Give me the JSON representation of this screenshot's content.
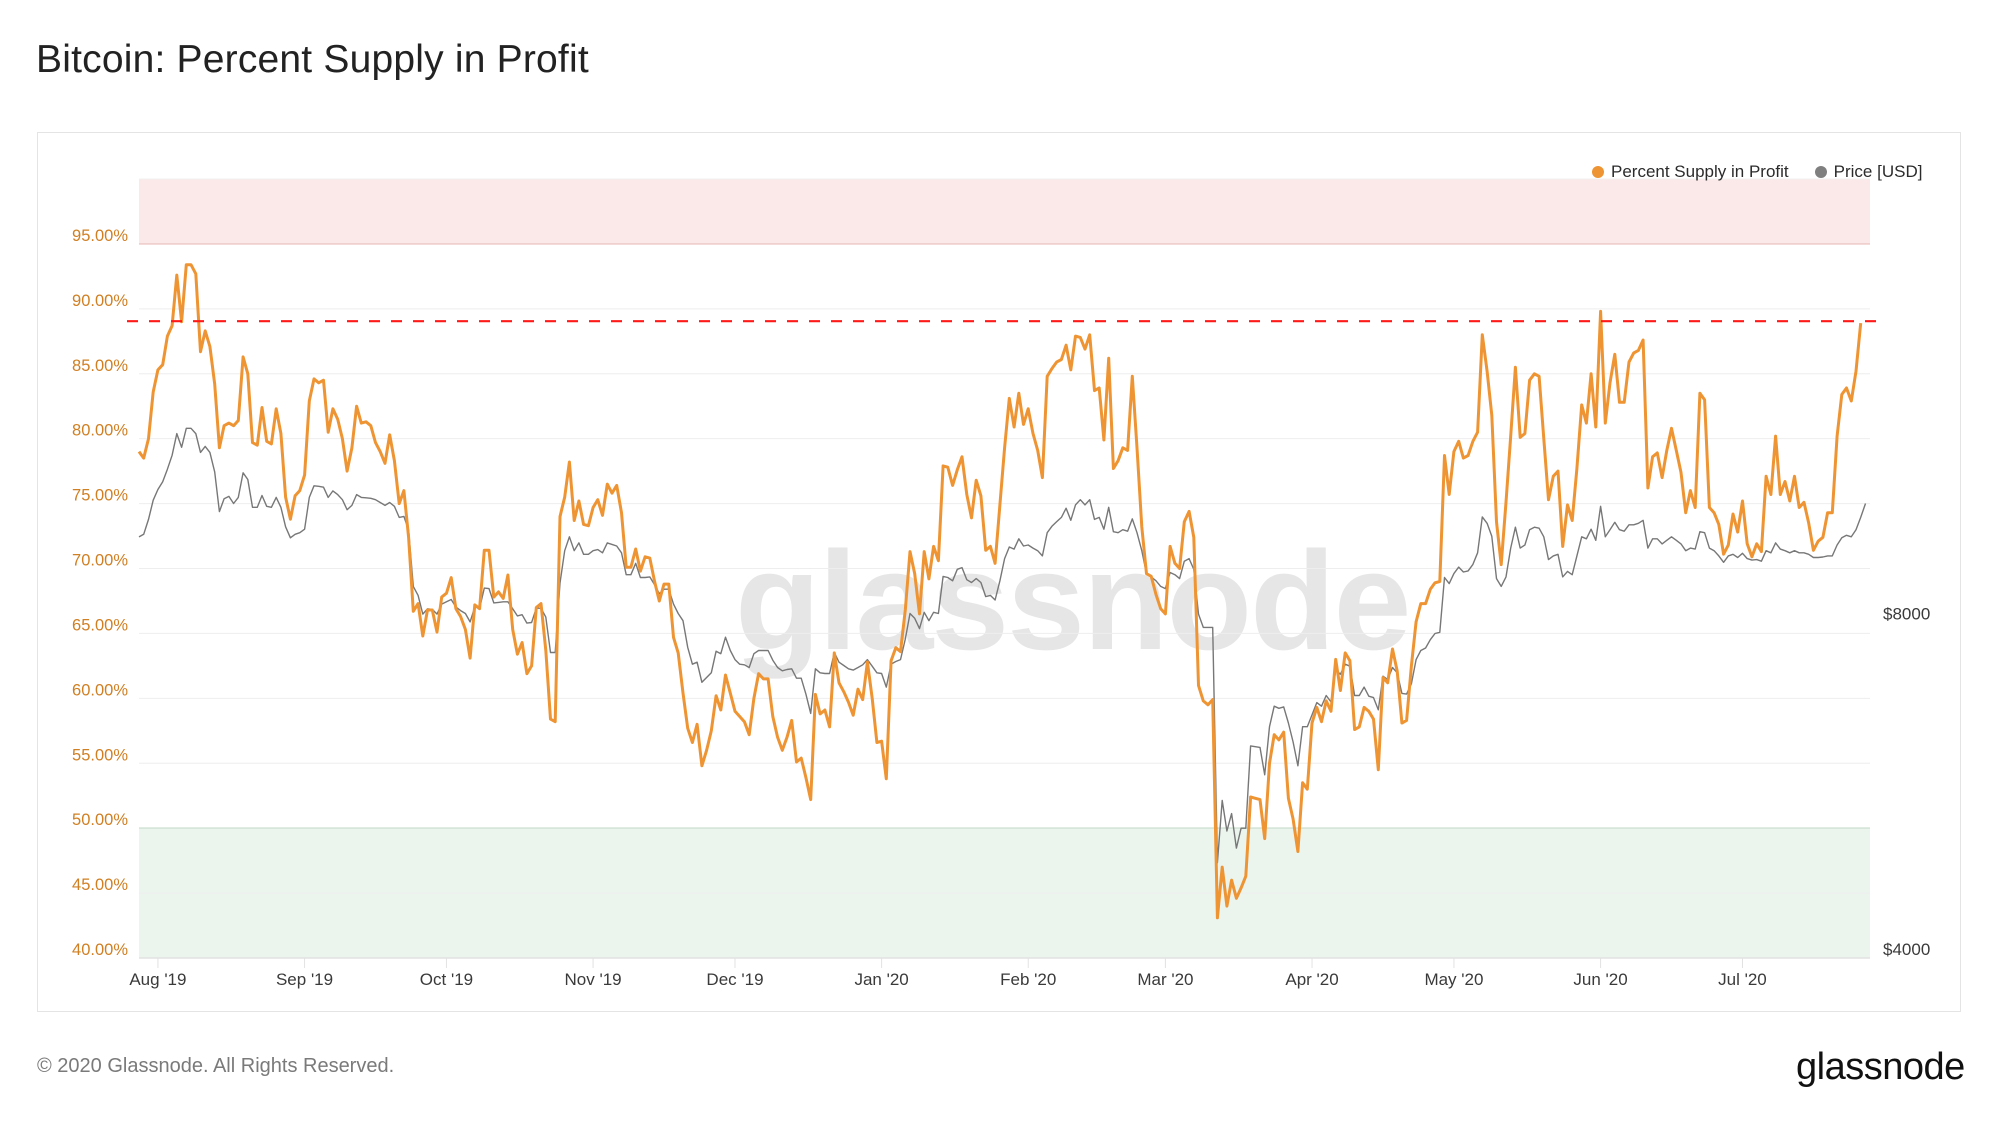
{
  "page": {
    "title": "Bitcoin: Percent Supply in Profit",
    "footer": "© 2020 Glassnode. All Rights Reserved.",
    "logo": "glassnode",
    "watermark": "glassnode"
  },
  "chart_data": {
    "type": "line",
    "title": "Bitcoin: Percent Supply in Profit",
    "x_start_date": "2019-07-28",
    "x_interval": "1 day",
    "x_ticks": [
      {
        "label": "Aug '19",
        "day": 4
      },
      {
        "label": "Sep '19",
        "day": 35
      },
      {
        "label": "Oct '19",
        "day": 65
      },
      {
        "label": "Nov '19",
        "day": 96
      },
      {
        "label": "Dec '19",
        "day": 126
      },
      {
        "label": "Jan '20",
        "day": 157
      },
      {
        "label": "Feb '20",
        "day": 188
      },
      {
        "label": "Mar '20",
        "day": 217
      },
      {
        "label": "Apr '20",
        "day": 248
      },
      {
        "label": "May '20",
        "day": 278
      },
      {
        "label": "Jun '20",
        "day": 309
      },
      {
        "label": "Jul '20",
        "day": 339
      }
    ],
    "y_left": {
      "label": "Percent Supply in Profit",
      "range": [
        40,
        100
      ],
      "scale": "linear",
      "ticks": [
        {
          "value": 40,
          "label": "40.00%"
        },
        {
          "value": 45,
          "label": "45.00%"
        },
        {
          "value": 50,
          "label": "50.00%"
        },
        {
          "value": 55,
          "label": "55.00%"
        },
        {
          "value": 60,
          "label": "60.00%"
        },
        {
          "value": 65,
          "label": "65.00%"
        },
        {
          "value": 70,
          "label": "70.00%"
        },
        {
          "value": 75,
          "label": "75.00%"
        },
        {
          "value": 80,
          "label": "80.00%"
        },
        {
          "value": 85,
          "label": "85.00%"
        },
        {
          "value": 90,
          "label": "90.00%"
        },
        {
          "value": 95,
          "label": "95.00%"
        }
      ]
    },
    "y_right": {
      "label": "Price [USD]",
      "range": [
        4000,
        20000
      ],
      "scale": "log",
      "ticks": [
        {
          "value": 8000,
          "label": "$8000"
        },
        {
          "value": 4000,
          "label": "$4000"
        }
      ]
    },
    "bands": [
      {
        "name": "upper-zone",
        "from": 95,
        "to": 100,
        "color": "#fbe8e8",
        "edge_color": "#f0877c"
      },
      {
        "name": "lower-zone",
        "from": 40,
        "to": 50,
        "color": "#ebf5ee",
        "edge_color": "#9ccfa6"
      }
    ],
    "threshold_line": {
      "value": 89.05,
      "color": "#ff1a1a",
      "style": "dashed"
    },
    "grid": true,
    "legend_position": "top-right",
    "series": [
      {
        "name": "Percent Supply in Profit",
        "axis": "left",
        "color": "#ee9433",
        "values": [
          79.0,
          78.5,
          80.0,
          83.6,
          85.3,
          85.7,
          87.9,
          88.7,
          92.6,
          89.0,
          93.4,
          93.4,
          92.7,
          86.7,
          88.3,
          87.1,
          84.2,
          79.3,
          81.0,
          81.2,
          81.0,
          81.4,
          86.3,
          85.0,
          79.7,
          79.5,
          82.4,
          79.8,
          79.6,
          82.3,
          80.4,
          75.5,
          73.8,
          75.6,
          76.0,
          77.2,
          82.9,
          84.6,
          84.3,
          84.5,
          80.5,
          82.3,
          81.5,
          80.0,
          77.5,
          79.3,
          82.5,
          81.2,
          81.3,
          81.0,
          79.7,
          79.0,
          78.1,
          80.3,
          78.3,
          75.0,
          76.0,
          72.4,
          66.7,
          67.3,
          64.8,
          66.8,
          66.8,
          65.1,
          67.8,
          68.1,
          69.3,
          66.9,
          66.3,
          65.3,
          63.1,
          67.2,
          66.9,
          71.4,
          71.4,
          67.8,
          68.2,
          67.7,
          69.5,
          65.3,
          63.4,
          64.3,
          61.9,
          62.5,
          67.0,
          67.3,
          63.7,
          58.4,
          58.2,
          74.0,
          75.5,
          78.2,
          73.7,
          75.2,
          73.4,
          73.3,
          74.7,
          75.3,
          74.1,
          76.5,
          75.8,
          76.4,
          74.3,
          70.1,
          70.1,
          71.5,
          69.8,
          70.9,
          70.8,
          69.0,
          67.5,
          68.8,
          68.8,
          64.7,
          63.5,
          60.4,
          57.7,
          56.6,
          58.0,
          54.8,
          56.0,
          57.5,
          60.2,
          59.1,
          61.8,
          60.4,
          59.0,
          58.6,
          58.2,
          57.2,
          60.0,
          61.9,
          61.5,
          61.5,
          58.6,
          57.0,
          56.0,
          57.0,
          58.3,
          55.1,
          55.4,
          53.9,
          52.2,
          60.3,
          58.8,
          59.1,
          57.8,
          63.5,
          61.2,
          60.5,
          59.7,
          58.7,
          60.7,
          59.9,
          62.8,
          60.0,
          56.6,
          56.7,
          53.8,
          62.9,
          63.9,
          63.6,
          66.8,
          71.3,
          69.6,
          66.5,
          71.3,
          69.2,
          71.7,
          70.6,
          77.9,
          77.8,
          76.4,
          77.6,
          78.6,
          75.7,
          73.9,
          76.8,
          75.6,
          71.4,
          71.7,
          70.4,
          74.9,
          79.3,
          83.1,
          80.9,
          83.5,
          81.1,
          82.3,
          80.4,
          79.1,
          77.0,
          84.8,
          85.4,
          85.9,
          86.1,
          87.2,
          85.3,
          87.9,
          87.8,
          86.9,
          88.0,
          83.7,
          83.9,
          79.9,
          86.2,
          77.7,
          78.3,
          79.3,
          79.1,
          84.8,
          79.3,
          73.2,
          69.6,
          69.4,
          68.0,
          66.9,
          66.5,
          71.7,
          70.4,
          70.0,
          73.6,
          74.4,
          72.4,
          61.0,
          59.8,
          59.5,
          59.9,
          43.1,
          47.0,
          44.0,
          46.0,
          44.6,
          45.4,
          46.3,
          52.4,
          52.3,
          52.2,
          49.2,
          55.0,
          57.2,
          56.8,
          57.4,
          52.3,
          50.7,
          48.2,
          53.5,
          53.0,
          58.1,
          59.3,
          58.2,
          59.8,
          59.0,
          63.0,
          60.6,
          63.5,
          62.9,
          57.6,
          57.8,
          59.3,
          59.0,
          58.4,
          54.5,
          61.6,
          61.2,
          63.8,
          62.1,
          58.1,
          58.3,
          62.5,
          65.9,
          67.3,
          67.3,
          68.4,
          68.9,
          69.0,
          78.7,
          75.7,
          79.0,
          79.8,
          78.5,
          78.7,
          79.8,
          80.5,
          88.0,
          85.2,
          81.8,
          73.6,
          70.3,
          75.1,
          80.2,
          85.5,
          80.1,
          80.4,
          84.5,
          85.0,
          84.8,
          80.0,
          75.3,
          77.1,
          77.5,
          71.7,
          74.9,
          73.7,
          77.7,
          82.6,
          81.2,
          85.0,
          80.9,
          89.8,
          81.2,
          84.3,
          86.5,
          82.8,
          82.8,
          85.9,
          86.6,
          86.8,
          87.6,
          76.2,
          78.6,
          78.9,
          77.0,
          79.1,
          80.8,
          79.1,
          77.4,
          74.3,
          76.0,
          74.7,
          83.5,
          83.0,
          74.7,
          74.3,
          73.4,
          71.1,
          71.8,
          74.2,
          72.8,
          75.2,
          71.9,
          70.9,
          71.9,
          71.3,
          77.1,
          75.7,
          80.2,
          75.7,
          76.7,
          75.2,
          77.1,
          74.7,
          75.1,
          73.5,
          71.4,
          72.1,
          72.4,
          74.3,
          74.3,
          80.2,
          83.4,
          83.9,
          82.9,
          85.2,
          88.9
        ]
      },
      {
        "name": "Price [USD]",
        "axis": "right",
        "color": "#777777",
        "values": [
          9548,
          9600,
          9900,
          10300,
          10530,
          10700,
          10980,
          11300,
          11820,
          11490,
          11950,
          11950,
          11820,
          11370,
          11510,
          11370,
          10920,
          10060,
          10330,
          10380,
          10230,
          10360,
          10900,
          10750,
          10150,
          10150,
          10400,
          10170,
          10150,
          10360,
          10150,
          9750,
          9530,
          9600,
          9630,
          9700,
          10360,
          10610,
          10600,
          10580,
          10360,
          10500,
          10420,
          10310,
          10100,
          10190,
          10420,
          10360,
          10350,
          10340,
          10310,
          10250,
          10190,
          10250,
          10170,
          9940,
          9960,
          9680,
          8620,
          8460,
          8140,
          8230,
          8220,
          8140,
          8310,
          8350,
          8390,
          8260,
          8200,
          8150,
          8010,
          8260,
          8240,
          8590,
          8580,
          8330,
          8340,
          8350,
          8350,
          8230,
          8110,
          8130,
          7990,
          8000,
          8240,
          8240,
          8090,
          7520,
          7520,
          8680,
          9280,
          9550,
          9280,
          9430,
          9210,
          9210,
          9280,
          9300,
          9240,
          9430,
          9400,
          9370,
          9240,
          8830,
          8830,
          9040,
          8780,
          8780,
          8790,
          8650,
          8490,
          8570,
          8570,
          8310,
          8150,
          8030,
          7600,
          7340,
          7370,
          7070,
          7140,
          7210,
          7540,
          7500,
          7760,
          7550,
          7410,
          7340,
          7330,
          7290,
          7500,
          7550,
          7550,
          7550,
          7400,
          7290,
          7240,
          7260,
          7270,
          7130,
          7130,
          6900,
          6630,
          7270,
          7210,
          7200,
          7200,
          7520,
          7370,
          7320,
          7270,
          7250,
          7290,
          7330,
          7410,
          7310,
          7210,
          7200,
          7000,
          7340,
          7380,
          7410,
          7730,
          8150,
          8070,
          7900,
          8170,
          8030,
          8170,
          8150,
          8800,
          8780,
          8720,
          8930,
          8960,
          8740,
          8690,
          8760,
          8690,
          8440,
          8460,
          8380,
          8720,
          9130,
          9350,
          9310,
          9510,
          9370,
          9390,
          9330,
          9280,
          9180,
          9630,
          9760,
          9850,
          9940,
          10130,
          9880,
          10200,
          10310,
          10200,
          10310,
          9900,
          9940,
          9700,
          10150,
          9650,
          9630,
          9690,
          9660,
          9910,
          9630,
          9280,
          8850,
          8790,
          8720,
          8620,
          8580,
          8870,
          8830,
          8760,
          9080,
          9130,
          8930,
          8140,
          7920,
          7920,
          7920,
          4870,
          5540,
          5200,
          5390,
          5020,
          5230,
          5230,
          6200,
          6190,
          6180,
          5840,
          6450,
          6730,
          6700,
          6720,
          6500,
          6250,
          5950,
          6450,
          6450,
          6610,
          6780,
          6730,
          6880,
          6790,
          7250,
          7190,
          7340,
          7310,
          6880,
          6880,
          7000,
          6870,
          6850,
          6680,
          7160,
          7110,
          7290,
          7210,
          6910,
          6900,
          7050,
          7410,
          7550,
          7590,
          7720,
          7820,
          7840,
          8780,
          8670,
          8850,
          8970,
          8880,
          8900,
          9020,
          9240,
          9950,
          9820,
          9560,
          8760,
          8620,
          8790,
          9330,
          9740,
          9330,
          9390,
          9690,
          9740,
          9720,
          9550,
          9110,
          9180,
          9210,
          8790,
          8890,
          8830,
          9180,
          9550,
          9510,
          9700,
          9480,
          10170,
          9550,
          9690,
          9840,
          9690,
          9660,
          9790,
          9790,
          9820,
          9880,
          9330,
          9510,
          9510,
          9410,
          9480,
          9550,
          9480,
          9410,
          9280,
          9330,
          9310,
          9650,
          9630,
          9330,
          9280,
          9180,
          9060,
          9180,
          9210,
          9150,
          9230,
          9130,
          9100,
          9110,
          9080,
          9280,
          9240,
          9430,
          9310,
          9280,
          9240,
          9280,
          9240,
          9240,
          9210,
          9150,
          9150,
          9160,
          9180,
          9180,
          9390,
          9530,
          9580,
          9550,
          9690,
          9940,
          10230
        ]
      }
    ]
  }
}
